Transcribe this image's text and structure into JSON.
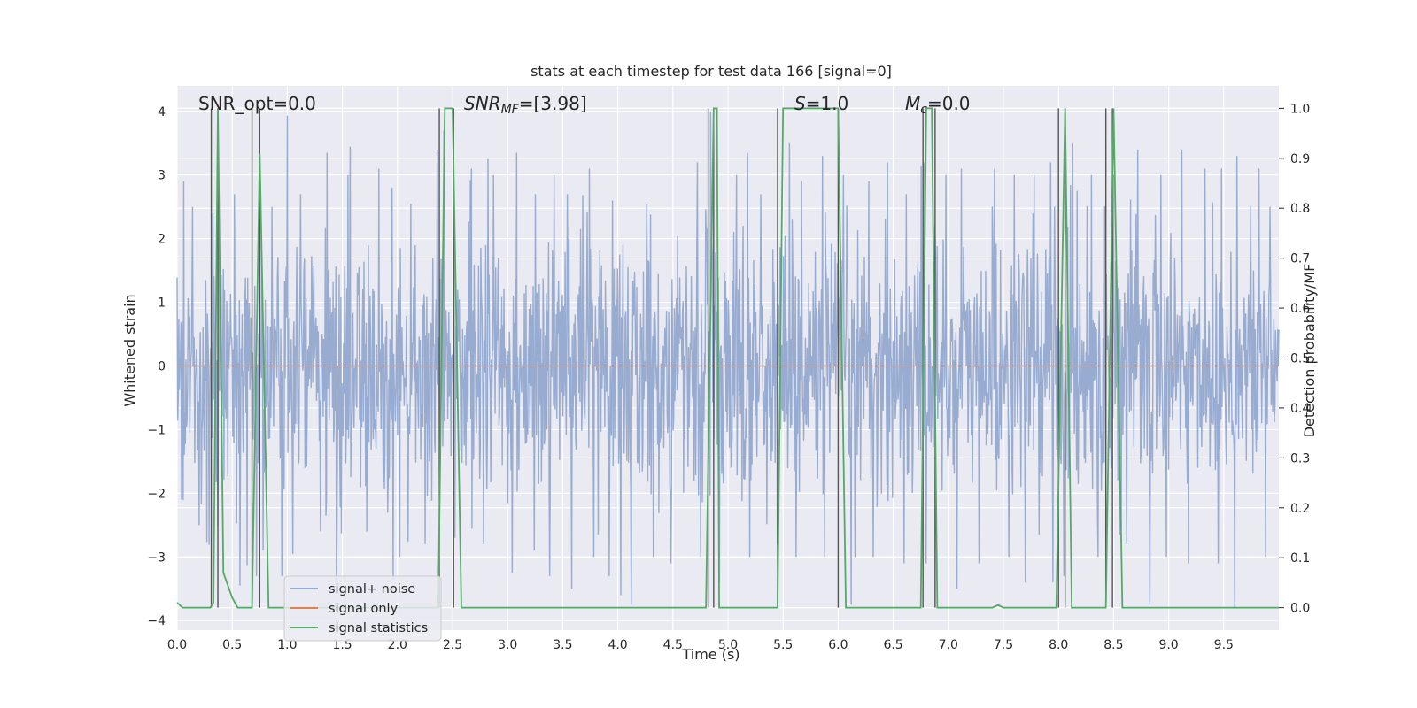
{
  "chart_data": {
    "type": "line",
    "title": "stats at each timestep for test data 166 [signal=0]",
    "xlabel": "Time (s)",
    "ylabel_left": "Whitened strain",
    "ylabel_right": "Detection probability/MF",
    "xlim": [
      0.0,
      10.0
    ],
    "ylim_left": [
      -4.15,
      4.4
    ],
    "ylim_right": [
      -0.045,
      1.045
    ],
    "x_ticks": [
      "0.0",
      "0.5",
      "1.0",
      "1.5",
      "2.0",
      "2.5",
      "3.0",
      "3.5",
      "4.0",
      "4.5",
      "5.0",
      "5.5",
      "6.0",
      "6.5",
      "7.0",
      "7.5",
      "8.0",
      "8.5",
      "9.0",
      "9.5"
    ],
    "y_ticks_left": [
      "4",
      "3",
      "2",
      "1",
      "0",
      "−1",
      "−2",
      "−3",
      "−4"
    ],
    "y_ticks_right": [
      "1.0",
      "0.9",
      "0.8",
      "0.7",
      "0.6",
      "0.5",
      "0.4",
      "0.3",
      "0.2",
      "0.1",
      "0.0"
    ],
    "grid": true,
    "annotations": {
      "snr_opt": "SNR_opt=0.0",
      "snr_mf_main": "SNR",
      "snr_mf_sub": "MF",
      "snr_mf_val": "=[3.98]",
      "s_main": "S",
      "s_val": "=1.0",
      "mc_main": "M",
      "mc_sub": "c",
      "mc_val": "=0.0"
    },
    "legend": {
      "placement": "lower-left",
      "entries": [
        "signal+ noise",
        "signal only",
        "signal statistics"
      ]
    },
    "series": [
      {
        "name": "signal+ noise",
        "axis": "left",
        "color": "#98abd0",
        "generated_noise": {
          "n": 2000,
          "sigma": 1.0
        },
        "spikes_high": [
          [
            0.06,
            2.9
          ],
          [
            0.14,
            2.5
          ],
          [
            0.38,
            2.4
          ],
          [
            0.52,
            2.7
          ],
          [
            0.75,
            3.3
          ],
          [
            0.86,
            2.5
          ],
          [
            1.0,
            3.93
          ],
          [
            1.12,
            2.7
          ],
          [
            1.36,
            3.35
          ],
          [
            1.55,
            3.0
          ],
          [
            1.83,
            3.1
          ],
          [
            1.95,
            2.8
          ],
          [
            2.12,
            2.55
          ],
          [
            2.36,
            3.4
          ],
          [
            2.42,
            3.7
          ],
          [
            2.67,
            3.1
          ],
          [
            2.82,
            3.25
          ],
          [
            2.87,
            3.0
          ],
          [
            3.08,
            3.35
          ],
          [
            3.25,
            2.7
          ],
          [
            3.42,
            3.0
          ],
          [
            3.54,
            2.7
          ],
          [
            3.74,
            3.1
          ],
          [
            3.95,
            2.6
          ],
          [
            4.12,
            2.7
          ],
          [
            4.32,
            3.0
          ],
          [
            4.48,
            3.0
          ],
          [
            4.72,
            3.2
          ],
          [
            4.84,
            4.0
          ],
          [
            5.08,
            3.0
          ],
          [
            5.18,
            3.35
          ],
          [
            5.3,
            2.7
          ],
          [
            5.56,
            3.5
          ],
          [
            5.67,
            2.9
          ],
          [
            5.86,
            3.3
          ],
          [
            6.05,
            3.0
          ],
          [
            6.28,
            2.9
          ],
          [
            6.45,
            3.2
          ],
          [
            6.62,
            2.7
          ],
          [
            6.78,
            3.2
          ],
          [
            6.98,
            3.0
          ],
          [
            7.12,
            3.1
          ],
          [
            7.42,
            3.1
          ],
          [
            7.6,
            3.0
          ],
          [
            7.78,
            3.0
          ],
          [
            7.93,
            3.2
          ],
          [
            8.13,
            3.5
          ],
          [
            8.3,
            3.0
          ],
          [
            8.5,
            3.0
          ],
          [
            8.72,
            3.4
          ],
          [
            8.93,
            3.0
          ],
          [
            9.12,
            3.4
          ],
          [
            9.33,
            3.1
          ],
          [
            9.48,
            3.1
          ],
          [
            9.62,
            3.3
          ],
          [
            9.82,
            3.1
          ],
          [
            9.92,
            2.5
          ]
        ],
        "spikes_low": [
          [
            0.04,
            -2.1
          ],
          [
            0.2,
            -2.5
          ],
          [
            0.57,
            -3.45
          ],
          [
            0.72,
            -3.3
          ],
          [
            0.78,
            -2.9
          ],
          [
            0.95,
            -3.3
          ],
          [
            1.3,
            -2.6
          ],
          [
            1.45,
            -2.7
          ],
          [
            1.72,
            -2.6
          ],
          [
            1.96,
            -3.35
          ],
          [
            2.02,
            -3.0
          ],
          [
            2.25,
            -2.8
          ],
          [
            2.52,
            -2.7
          ],
          [
            2.78,
            -2.8
          ],
          [
            3.04,
            -3.25
          ],
          [
            3.24,
            -2.9
          ],
          [
            3.38,
            -3.3
          ],
          [
            3.58,
            -3.5
          ],
          [
            3.78,
            -3.0
          ],
          [
            3.92,
            -3.3
          ],
          [
            4.12,
            -3.75
          ],
          [
            4.32,
            -3.0
          ],
          [
            4.48,
            -3.1
          ],
          [
            4.75,
            -3.0
          ],
          [
            4.92,
            -3.4
          ],
          [
            5.2,
            -3.0
          ],
          [
            5.45,
            -2.8
          ],
          [
            5.62,
            -3.0
          ],
          [
            5.88,
            -3.0
          ],
          [
            6.12,
            -3.75
          ],
          [
            6.32,
            -3.0
          ],
          [
            6.6,
            -3.1
          ],
          [
            6.8,
            -3.1
          ],
          [
            7.08,
            -3.5
          ],
          [
            7.28,
            -3.1
          ],
          [
            7.55,
            -3.0
          ],
          [
            7.7,
            -3.4
          ],
          [
            7.95,
            -3.4
          ],
          [
            8.05,
            -3.3
          ],
          [
            8.36,
            -3.0
          ],
          [
            8.62,
            -2.8
          ],
          [
            8.83,
            -3.75
          ],
          [
            8.98,
            -3.0
          ],
          [
            9.18,
            -3.1
          ],
          [
            9.45,
            -3.1
          ],
          [
            9.6,
            -3.8
          ],
          [
            9.88,
            -3.0
          ]
        ]
      },
      {
        "name": "signal only",
        "axis": "left",
        "color": "#dd8452",
        "x": [
          0.0,
          10.0
        ],
        "y": [
          0.0,
          0.0
        ]
      },
      {
        "name": "signal statistics",
        "axis": "right",
        "color": "#55a868",
        "x": [
          0.0,
          0.05,
          0.3,
          0.33,
          0.37,
          0.42,
          0.5,
          0.55,
          0.6,
          0.68,
          0.75,
          0.83,
          0.85,
          2.37,
          2.43,
          2.5,
          2.58,
          2.6,
          4.8,
          4.87,
          4.9,
          4.92,
          5.45,
          5.5,
          6.0,
          6.07,
          6.75,
          6.8,
          6.85,
          6.9,
          7.4,
          7.45,
          7.5,
          7.98,
          8.06,
          8.12,
          8.43,
          8.5,
          8.58,
          10.0
        ],
        "y": [
          0.01,
          0.0,
          0.0,
          0.01,
          1.0,
          0.07,
          0.02,
          0.0,
          0.0,
          0.0,
          0.91,
          0.0,
          0.0,
          0.0,
          1.0,
          1.0,
          0.0,
          0.0,
          0.0,
          1.0,
          1.0,
          0.0,
          0.0,
          1.0,
          1.0,
          0.0,
          0.0,
          1.0,
          1.0,
          0.0,
          0.0,
          0.005,
          0.0,
          0.0,
          1.0,
          0.0,
          0.0,
          1.0,
          0.0,
          0.0
        ]
      }
    ],
    "vlines": [
      0.31,
      0.37,
      0.68,
      0.75,
      2.38,
      2.51,
      4.82,
      4.87,
      5.45,
      6.0,
      6.77,
      6.88,
      8.0,
      8.06,
      8.43,
      8.49
    ]
  }
}
